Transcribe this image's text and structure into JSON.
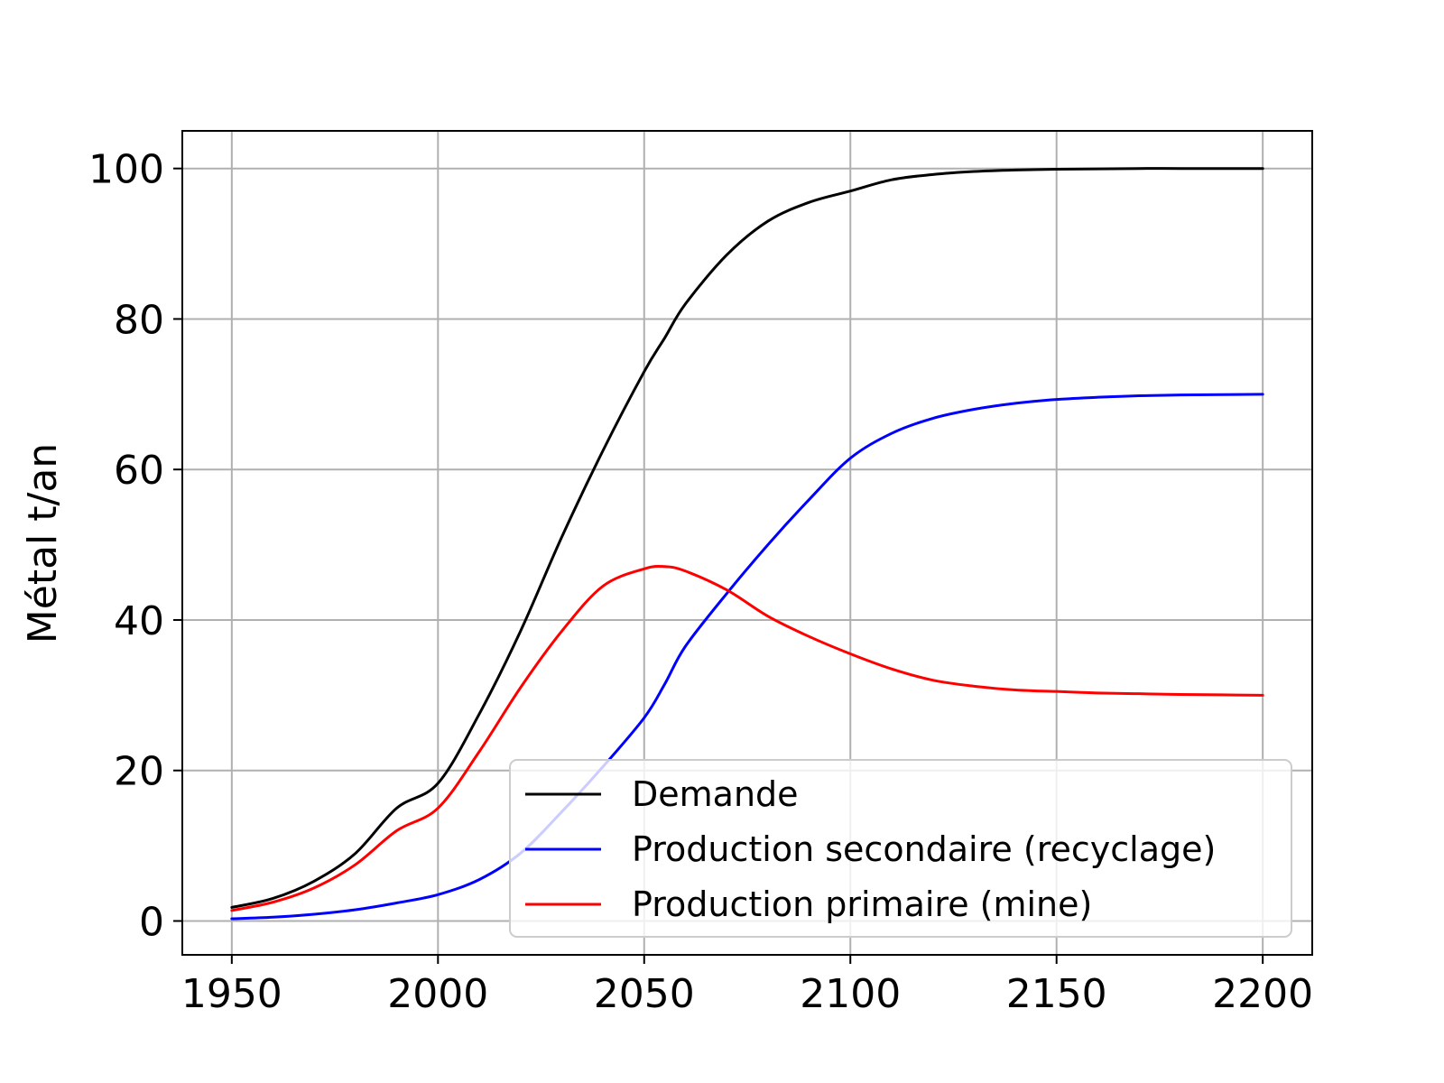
{
  "chart_data": {
    "type": "line",
    "title": "",
    "xlabel": "",
    "ylabel": "Métal t/an",
    "xlim": [
      1938,
      2212
    ],
    "ylim": [
      -4.5,
      105
    ],
    "xticks": [
      1950,
      2000,
      2050,
      2100,
      2150,
      2200
    ],
    "yticks": [
      0,
      20,
      40,
      60,
      80,
      100
    ],
    "grid": true,
    "legend_position": "lower-right",
    "x": [
      1950,
      1960,
      1970,
      1980,
      1990,
      2000,
      2010,
      2020,
      2030,
      2040,
      2050,
      2055,
      2060,
      2070,
      2080,
      2090,
      2100,
      2110,
      2120,
      2130,
      2140,
      2150,
      2160,
      2170,
      2180,
      2190,
      2200
    ],
    "series": [
      {
        "name": "Demande",
        "color": "#000000",
        "values": [
          1.8,
          3.0,
          5.3,
          9.0,
          15.0,
          18.3,
          27.5,
          38.5,
          51.0,
          62.5,
          73.0,
          77.5,
          82.0,
          88.5,
          93.0,
          95.5,
          97.0,
          98.5,
          99.2,
          99.6,
          99.8,
          99.9,
          99.95,
          100.0,
          100.0,
          100.0,
          100.0
        ]
      },
      {
        "name": "Production secondaire (recyclage)",
        "color": "#0000ff",
        "values": [
          0.3,
          0.5,
          0.9,
          1.5,
          2.4,
          3.5,
          5.5,
          9.0,
          14.5,
          20.5,
          27.0,
          31.5,
          36.5,
          43.5,
          50.0,
          56.0,
          61.5,
          64.8,
          66.8,
          68.0,
          68.8,
          69.3,
          69.6,
          69.8,
          69.9,
          69.95,
          70.0
        ]
      },
      {
        "name": "Production primaire (mine)",
        "color": "#ff0000",
        "values": [
          1.4,
          2.5,
          4.4,
          7.5,
          12.0,
          15.0,
          22.5,
          31.0,
          38.5,
          44.5,
          46.8,
          47.1,
          46.5,
          44.0,
          40.5,
          37.8,
          35.5,
          33.5,
          32.0,
          31.2,
          30.7,
          30.5,
          30.3,
          30.2,
          30.1,
          30.05,
          30.0
        ]
      }
    ]
  }
}
